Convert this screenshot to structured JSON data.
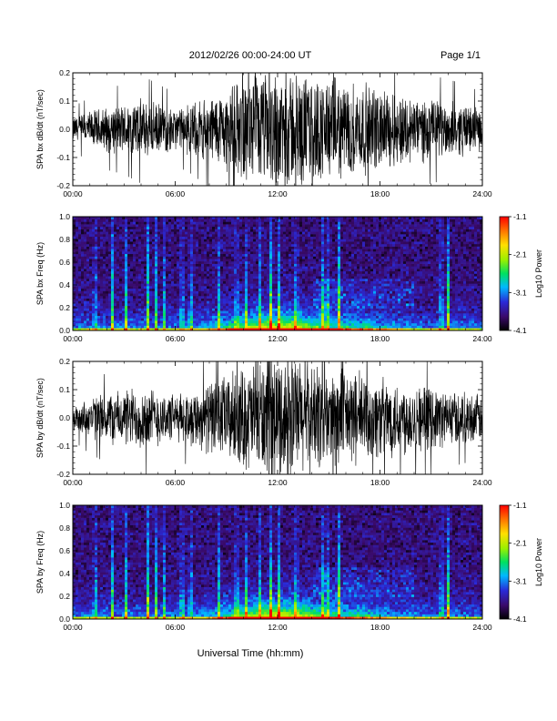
{
  "header": {
    "title": "2012/02/26  00:00-24:00 UT",
    "page": "Page 1/1"
  },
  "xaxis": {
    "label": "Universal Time (hh:mm)",
    "ticks": [
      "00:00",
      "06:00",
      "12:00",
      "18:00",
      "24:00"
    ],
    "range_hours": [
      0,
      24
    ]
  },
  "colorbar": {
    "label": "Log10 Power",
    "ticks": [
      "-1.1",
      "-2.1",
      "-3.1",
      "-4.1"
    ],
    "range": [
      -4.1,
      -1.1
    ],
    "colormap": [
      "#000000",
      "#3a0a6a",
      "#2a2ad8",
      "#00b8ff",
      "#00e060",
      "#9af000",
      "#ffe000",
      "#ff7000",
      "#ff0000"
    ]
  },
  "chart_data": [
    {
      "type": "line",
      "ylabel": "SPA bx dB/dt (nT/sec)",
      "ylim": [
        -0.2,
        0.2
      ],
      "yticks": [
        "0.2",
        "0.1",
        "0.0",
        "-0.1",
        "-0.2"
      ],
      "xlim": [
        0,
        24
      ],
      "envelope_hours": [
        0,
        1,
        2,
        3,
        4,
        5,
        6,
        7,
        8,
        9,
        10,
        11,
        12,
        13,
        14,
        15,
        16,
        17,
        18,
        19,
        20,
        21,
        22,
        23,
        24
      ],
      "envelope_amplitude": [
        0.05,
        0.07,
        0.09,
        0.1,
        0.12,
        0.1,
        0.08,
        0.1,
        0.13,
        0.16,
        0.2,
        0.22,
        0.24,
        0.23,
        0.21,
        0.2,
        0.19,
        0.18,
        0.16,
        0.15,
        0.13,
        0.12,
        0.11,
        0.1,
        0.08
      ],
      "color": "#000000"
    },
    {
      "type": "heatmap",
      "ylabel": "SPA bx Freq (Hz)",
      "ylim": [
        0,
        1
      ],
      "yticks": [
        "1.0",
        "0.8",
        "0.6",
        "0.4",
        "0.2",
        "0.0"
      ],
      "xlim": [
        0,
        24
      ],
      "zlim": [
        -4.1,
        -1.1
      ]
    },
    {
      "type": "line",
      "ylabel": "SPA by dB/dt (nT/sec)",
      "ylim": [
        -0.2,
        0.2
      ],
      "yticks": [
        "0.2",
        "0.1",
        "0.0",
        "-0.1",
        "-0.2"
      ],
      "xlim": [
        0,
        24
      ],
      "envelope_hours": [
        0,
        1,
        2,
        3,
        4,
        5,
        6,
        7,
        8,
        9,
        10,
        11,
        12,
        13,
        14,
        15,
        16,
        17,
        18,
        19,
        20,
        21,
        22,
        23,
        24
      ],
      "envelope_amplitude": [
        0.05,
        0.08,
        0.1,
        0.11,
        0.13,
        0.11,
        0.09,
        0.11,
        0.14,
        0.17,
        0.2,
        0.23,
        0.25,
        0.24,
        0.22,
        0.2,
        0.19,
        0.18,
        0.16,
        0.15,
        0.14,
        0.12,
        0.11,
        0.1,
        0.09
      ],
      "color": "#000000"
    },
    {
      "type": "heatmap",
      "ylabel": "SPA by Freq (Hz)",
      "ylim": [
        0,
        1
      ],
      "yticks": [
        "1.0",
        "0.8",
        "0.6",
        "0.4",
        "0.2",
        "0.0"
      ],
      "xlim": [
        0,
        24
      ],
      "zlim": [
        -4.1,
        -1.1
      ]
    }
  ]
}
